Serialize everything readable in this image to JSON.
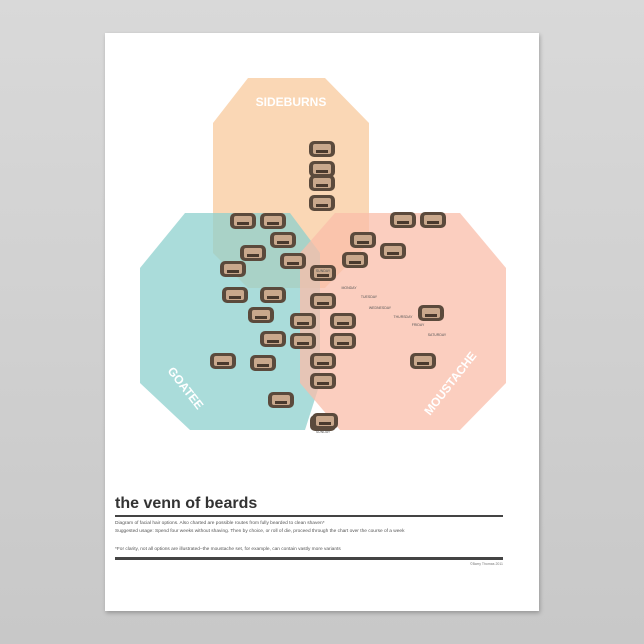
{
  "diagram": {
    "sets": [
      {
        "label": "SIDEBURNS",
        "color": "#f8c99c"
      },
      {
        "label": "GOATEE",
        "color": "#8ed0cd"
      },
      {
        "label": "MOUSTACHE",
        "color": "#f9bda9"
      }
    ],
    "day_labels": [
      "SUNDAY",
      "MONDAY",
      "TUESDAY",
      "WEDNESDAY",
      "THURSDAY",
      "FRIDAY",
      "SATURDAY",
      "SUNDAY"
    ],
    "face_icon": "bearded-face-icon"
  },
  "footer": {
    "title": "the venn of beards",
    "description_1": "Diagram of facial hair options. Also charted are possible routes from fully bearded to clean shaven*",
    "description_2": "Suggested usage: Spend four weeks without shaving. Then by choice, or roll of die, proceed through the chart over the course of a week",
    "note": "*For clarity, not all options are illustrated–the moustache set, for example, can contain vastly more variants",
    "copyright": "©Barry Thomas 2011"
  }
}
